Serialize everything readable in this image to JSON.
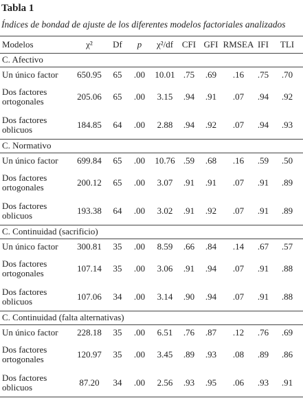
{
  "header": {
    "title": "Tabla 1",
    "subtitle": "Índices de bondad de ajuste de los diferentes modelos factoriales analizados"
  },
  "table": {
    "columns": [
      "Modelos",
      "χ²",
      "Df",
      "p",
      "χ²/df",
      "CFI",
      "GFI",
      "RMSEA",
      "IFI",
      "TLI"
    ],
    "sections": [
      {
        "label": "C. Afectivo",
        "rows": [
          {
            "model": "Un único factor",
            "cells": [
              "650.95",
              "65",
              ".00",
              "10.01",
              ".75",
              ".69",
              ".16",
              ".75",
              ".70"
            ]
          },
          {
            "model": "Dos factores ortogonales",
            "cells": [
              "205.06",
              "65",
              ".00",
              "3.15",
              ".94",
              ".91",
              ".07",
              ".94",
              ".92"
            ]
          },
          {
            "model": "Dos factores oblicuos",
            "cells": [
              "184.85",
              "64",
              ".00",
              "2.88",
              ".94",
              ".92",
              ".07",
              ".94",
              ".93"
            ]
          }
        ]
      },
      {
        "label": "C. Normativo",
        "rows": [
          {
            "model": "Un único factor",
            "cells": [
              "699.84",
              "65",
              ".00",
              "10.76",
              ".59",
              ".68",
              ".16",
              ".59",
              ".50"
            ]
          },
          {
            "model": "Dos factores ortogonales",
            "cells": [
              "200.12",
              "65",
              ".00",
              "3.07",
              ".91",
              ".91",
              ".07",
              ".91",
              ".89"
            ]
          },
          {
            "model": "Dos factores oblicuos",
            "cells": [
              "193.38",
              "64",
              ".00",
              "3.02",
              ".91",
              ".92",
              ".07",
              ".91",
              ".89"
            ]
          }
        ]
      },
      {
        "label": "C. Continuidad (sacrificio)",
        "rows": [
          {
            "model": "Un único factor",
            "cells": [
              "300.81",
              "35",
              ".00",
              "8.59",
              ".66",
              ".84",
              ".14",
              ".67",
              ".57"
            ]
          },
          {
            "model": "Dos factores ortogonales",
            "cells": [
              "107.14",
              "35",
              ".00",
              "3.06",
              ".91",
              ".94",
              ".07",
              ".91",
              ".88"
            ]
          },
          {
            "model": "Dos factores oblicuos",
            "cells": [
              "107.06",
              "34",
              ".00",
              "3.14",
              ".90",
              ".94",
              ".07",
              ".91",
              ".88"
            ]
          }
        ]
      },
      {
        "label": "C. Continuidad (falta alternativas)",
        "rows": [
          {
            "model": "Un único factor",
            "cells": [
              "228.18",
              "35",
              ".00",
              "6.51",
              ".76",
              ".87",
              ".12",
              ".76",
              ".69"
            ]
          },
          {
            "model": "Dos factores ortogonales",
            "cells": [
              "120.97",
              "35",
              ".00",
              "3.45",
              ".89",
              ".93",
              ".08",
              ".89",
              ".86"
            ]
          },
          {
            "model": "Dos factores oblicuos",
            "cells": [
              "87.20",
              "34",
              ".00",
              "2.56",
              ".93",
              ".95",
              ".06",
              ".93",
              ".91"
            ]
          }
        ]
      }
    ]
  }
}
